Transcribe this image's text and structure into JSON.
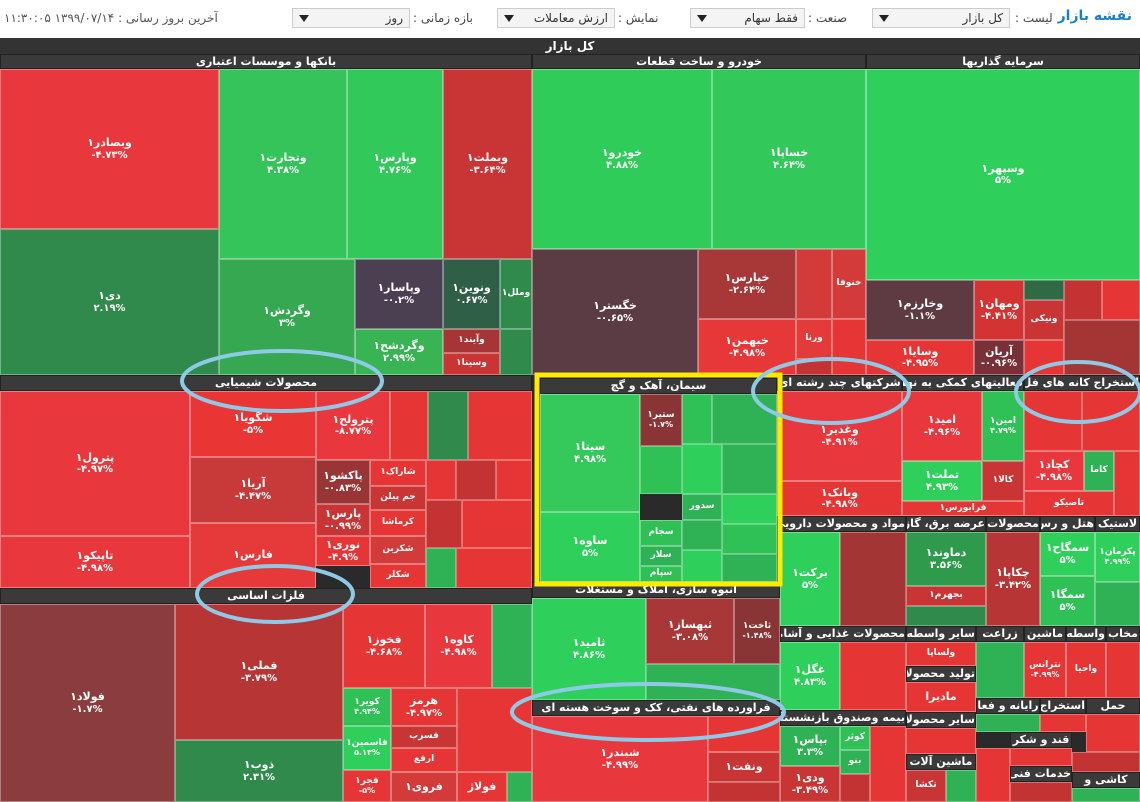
{
  "header": {
    "title": "نقشه بازار",
    "filters": [
      {
        "label": "لیست :",
        "value": "کل بازار"
      },
      {
        "label": "صنعت :",
        "value": "فقط سهام"
      },
      {
        "label": "نمایش :",
        "value": "ارزش معاملات"
      },
      {
        "label": "بازه زمانی :",
        "value": "روز"
      }
    ],
    "last_update": "آخرین بروز رسانی : ۱۳۹۹/۰۷/۱۴ ۱۱:۳۰:۰۵"
  },
  "treemap": {
    "title": "کل بازار",
    "sectors": [
      {
        "name": "بانکها و موسسات اعتباری",
        "tiles": [
          {
            "label": "وبصادر۱",
            "change": "-۴.۷۳%",
            "color": "#e8383d"
          },
          {
            "label": "دی۱",
            "change": "۲.۱۹%",
            "color": "#2f8a4c"
          },
          {
            "label": "وتجارت۱",
            "change": "۴.۳۸%",
            "color": "#35c459"
          },
          {
            "label": "وپارس۱",
            "change": "۴.۷۶%",
            "color": "#30c95a"
          },
          {
            "label": "وبملت۱",
            "change": "-۳.۶۴%",
            "color": "#c93434"
          },
          {
            "label": "وگردش۱",
            "change": "۳%",
            "color": "#36a852"
          },
          {
            "label": "وپاسار۱",
            "change": "-۰.۲%",
            "color": "#4b3f52"
          },
          {
            "label": "ونوین۱",
            "change": "۰.۶۷%",
            "color": "#2f5f47"
          },
          {
            "label": "وگردشح۱",
            "change": "۲.۹۹%",
            "color": "#38b455"
          },
          {
            "label": "وآیند۱",
            "color": "#a83535"
          },
          {
            "label": "وسینا۱",
            "color": "#c93434"
          },
          {
            "label": "وملل۱",
            "color": "#2f8a4c"
          }
        ]
      },
      {
        "name": "خودرو و ساخت قطعات",
        "tiles": [
          {
            "label": "خودرو۱",
            "change": "۴.۸۸%",
            "color": "#2fcc5a"
          },
          {
            "label": "خساپا۱",
            "change": "۴.۶۴%",
            "color": "#33c85a"
          },
          {
            "label": "خگستر۱",
            "change": "-۰.۶۵%",
            "color": "#5b3c44"
          },
          {
            "label": "خپارس۱",
            "change": "-۲.۶۴%",
            "color": "#a83838"
          },
          {
            "label": "خبهمن۱",
            "change": "-۴.۹۸%",
            "color": "#e63838"
          },
          {
            "label": "خنوفا",
            "color": "#d33b3b"
          },
          {
            "label": "ورنا",
            "color": "#e33a3a"
          }
        ]
      },
      {
        "name": "سرمایه گذاریها",
        "tiles": [
          {
            "label": "وسپهر۱",
            "change": "۵%",
            "color": "#2fcf5c"
          },
          {
            "label": "وخارزم۱",
            "change": "-۱.۱%",
            "color": "#5e3b42"
          },
          {
            "label": "وسایا۱",
            "change": "-۴.۹۵%",
            "color": "#e53535"
          },
          {
            "label": "ومهان۱",
            "change": "-۴.۴۱%",
            "color": "#d33333"
          },
          {
            "label": "آریان",
            "change": "-۰.۹۶%",
            "color": "#7a3038"
          },
          {
            "label": "ونیکی",
            "color": "#c93434"
          }
        ]
      },
      {
        "name": "محصولات شیمیایی",
        "tiles": [
          {
            "label": "پترول۱",
            "change": "-۴.۹۷%",
            "color": "#e8383d"
          },
          {
            "label": "تاپیکو۱",
            "change": "-۴.۹۸%",
            "color": "#e8383d"
          },
          {
            "label": "شگویا۱",
            "change": "-۵%",
            "color": "#ea3535"
          },
          {
            "label": "آریا۱",
            "change": "-۴.۴۷%",
            "color": "#c83a3a"
          },
          {
            "label": "فارس۱",
            "color": "#e63a3a"
          },
          {
            "label": "پترولح۱",
            "change": "-۸.۷۷%",
            "color": "#e8383d"
          },
          {
            "label": "پاکشو۱",
            "change": "-۰.۸۳%",
            "color": "#9a3535"
          },
          {
            "label": "پارس۱",
            "change": "-۰.۹۹%",
            "color": "#c93434"
          },
          {
            "label": "نوری۱",
            "change": "-۴.۹%",
            "color": "#e53535"
          },
          {
            "label": "شاراک۱",
            "color": "#e53535"
          },
          {
            "label": "جم پیلن",
            "color": "#c93434"
          },
          {
            "label": "کرماشا",
            "color": "#e53535"
          },
          {
            "label": "شکربن",
            "color": "#d33b3b"
          },
          {
            "label": "شکلر",
            "color": "#e53535"
          }
        ]
      },
      {
        "name": "سیمان، آهک و گچ",
        "tiles": [
          {
            "label": "سیتا۱",
            "change": "۴.۹۸%",
            "color": "#35c85a"
          },
          {
            "label": "ساوه۱",
            "change": "۵%",
            "color": "#2fcf5c"
          },
          {
            "label": "ستیر۱",
            "change": "-۱.۷%",
            "color": "#8a3535"
          },
          {
            "label": "سدور",
            "color": "#2fb155"
          },
          {
            "label": "سجام",
            "color": "#2fc155"
          },
          {
            "label": "سلار",
            "color": "#2fb155"
          },
          {
            "label": "سپام",
            "color": "#2fc155"
          }
        ]
      },
      {
        "name": "شرکتهای چند رشته ای",
        "tiles": [
          {
            "label": "وغدیر۱",
            "change": "-۴.۹۱%",
            "color": "#e8383d"
          },
          {
            "label": "وبانک۱",
            "change": "-۴.۹۸%",
            "color": "#e53535"
          }
        ]
      },
      {
        "name": "فعالیتهای کمکی به نها",
        "tiles": [
          {
            "label": "امید۱",
            "change": "-۴.۹۶%",
            "color": "#e8383d"
          },
          {
            "label": "امین۱",
            "change": "۴.۷۹%",
            "color": "#2fc155"
          },
          {
            "label": "تملت۱",
            "change": "۴.۹۳%",
            "color": "#2fcf5c"
          },
          {
            "label": "کالا۱",
            "color": "#c93434"
          },
          {
            "label": "فرابورس۱",
            "color": "#e53535"
          }
        ]
      },
      {
        "name": "استخراج کانه های فل",
        "tiles": [
          {
            "label": "کچاد۱",
            "change": "-۴.۹۸%",
            "color": "#e8383d"
          },
          {
            "label": "کاما",
            "color": "#2fb155"
          },
          {
            "label": "تاصیکو",
            "color": "#e53535"
          }
        ]
      },
      {
        "name": "مواد و محصولات دارویی",
        "tiles": [
          {
            "label": "برکت۱",
            "change": "۵%",
            "color": "#2fcf5c"
          }
        ]
      },
      {
        "name": "عرضه برق، گاز",
        "tiles": [
          {
            "label": "دماوند۱",
            "change": "۳.۵۶%",
            "color": "#2f9a4c"
          },
          {
            "label": "بجهرم۱",
            "color": "#c93434"
          }
        ]
      },
      {
        "name": "محصولات",
        "tiles": [
          {
            "label": "چکاپا۱",
            "change": "-۳.۴۲%",
            "color": "#b83535"
          }
        ]
      },
      {
        "name": "هتل و رس",
        "tiles": [
          {
            "label": "سمگاح۱",
            "change": "۵%",
            "color": "#2fcf5c"
          },
          {
            "label": "سمگا۱",
            "change": "۵%",
            "color": "#2fc155"
          }
        ]
      },
      {
        "name": "لاستیک",
        "tiles": [
          {
            "label": "پکرمان۱",
            "change": "۴.۹۹%",
            "color": "#2fcf5c"
          }
        ]
      },
      {
        "name": "فلزات اساسی",
        "tiles": [
          {
            "label": "فولاد۱",
            "change": "-۱.۷%",
            "color": "#8b3c3e"
          },
          {
            "label": "فملی۱",
            "change": "-۳.۷۹%",
            "color": "#b83535"
          },
          {
            "label": "ذوب۱",
            "change": "۲.۳۱%",
            "color": "#2f8a4c"
          },
          {
            "label": "فخوز۱",
            "change": "-۴.۶۸%",
            "color": "#e53535"
          },
          {
            "label": "کاوه۱",
            "change": "-۴.۹۸%",
            "color": "#e8383d"
          },
          {
            "label": "کویر۱",
            "change": "۴.۹۴%",
            "color": "#2fc155"
          },
          {
            "label": "فاسمین۱",
            "change": "۵.۱۳%",
            "color": "#2fcf5c"
          },
          {
            "label": "فجر۱",
            "change": "-۵%",
            "color": "#e53535"
          },
          {
            "label": "هرمز",
            "change": "-۴.۹۷%",
            "color": "#e53535"
          },
          {
            "label": "فسرب",
            "color": "#c93434"
          },
          {
            "label": "ارفع",
            "color": "#e53535"
          },
          {
            "label": "فروی۱",
            "color": "#d33b3b"
          },
          {
            "label": "فولاژ",
            "color": "#e53535"
          }
        ]
      },
      {
        "name": "انبوه سازی، املاک و مستغلات",
        "tiles": [
          {
            "label": "ثامید۱",
            "change": "۴.۸۶%",
            "color": "#2fcf5c"
          },
          {
            "label": "ثبهساز۱",
            "change": "-۳.۰۸%",
            "color": "#a83838"
          },
          {
            "label": "ثاخت۱",
            "change": "-۱.۴۸%",
            "color": "#8a3535"
          }
        ]
      },
      {
        "name": "فراورده های نفتی، کک و سوخت هسته ای",
        "tiles": [
          {
            "label": "شبندر۱",
            "change": "-۴.۹۹%",
            "color": "#e8383d"
          },
          {
            "label": "ونفت۱",
            "color": "#c93434"
          }
        ]
      },
      {
        "name": "محصولات غذایی و آشامیدنی",
        "tiles": [
          {
            "label": "غگل۱",
            "change": "۴.۸۳%",
            "color": "#2fcf5c"
          }
        ]
      },
      {
        "name": "سایر واسطه",
        "tiles": [
          {
            "label": "ولساپا",
            "color": "#e53535"
          }
        ]
      },
      {
        "name": "زراعت",
        "tiles": []
      },
      {
        "name": "ماشین",
        "tiles": [
          {
            "label": "نترانس",
            "change": "-۴.۹۹%",
            "color": "#e53535"
          }
        ]
      },
      {
        "name": "واسطه",
        "tiles": [
          {
            "label": "واحیا",
            "color": "#e53535"
          }
        ]
      },
      {
        "name": "مخاب",
        "tiles": []
      },
      {
        "name": "بیمه وصندوق بازنشستگی",
        "tiles": [
          {
            "label": "بپاس۱",
            "change": "۳.۳%",
            "color": "#2fb155"
          },
          {
            "label": "ودی۱",
            "change": "-۳.۴۹%",
            "color": "#c93434"
          },
          {
            "label": "کوثر",
            "color": "#2fc155"
          },
          {
            "label": "بنو",
            "color": "#2fb155"
          }
        ]
      },
      {
        "name": "تولید محصولا",
        "tiles": [
          {
            "label": "مادیرا",
            "color": "#e53535"
          }
        ]
      },
      {
        "name": "سایر محصولا",
        "tiles": []
      },
      {
        "name": "ماشین آلات",
        "tiles": [
          {
            "label": "تکشا",
            "color": "#c93434"
          }
        ]
      },
      {
        "name": "رایانه و فعا",
        "tiles": []
      },
      {
        "name": "استخراج",
        "tiles": []
      },
      {
        "name": "حمل",
        "tiles": []
      },
      {
        "name": "قند و شکر",
        "tiles": []
      },
      {
        "name": "خدمات فنی",
        "tiles": []
      },
      {
        "name": "کاشی و",
        "tiles": []
      }
    ]
  }
}
